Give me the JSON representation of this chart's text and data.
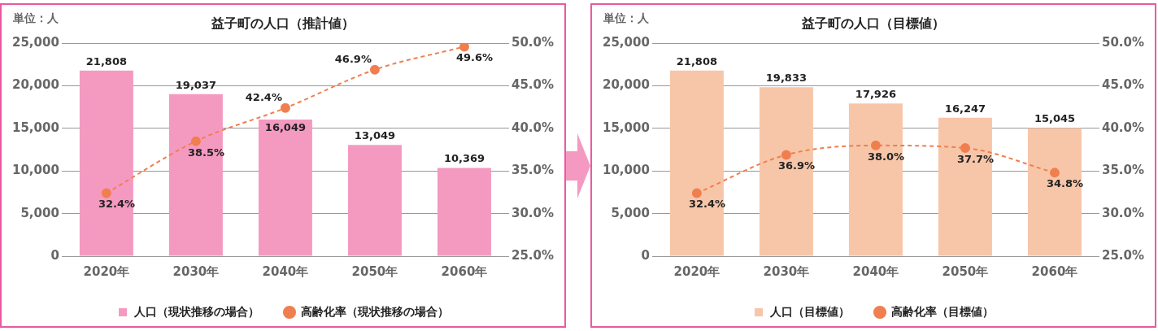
{
  "chart_data": [
    {
      "type": "bar",
      "title": "益子町の人口（推計値）",
      "annotations": [
        "単位：人"
      ],
      "categories": [
        "2020年",
        "2030年",
        "2040年",
        "2050年",
        "2060年"
      ],
      "series": [
        {
          "name": "人口（現状推移の場合）",
          "color": "#f49ac1",
          "values": [
            21808,
            19037,
            16049,
            13049,
            10369
          ],
          "value_labels": [
            "21,808",
            "19,037",
            "16,049",
            "13,049",
            "10,369"
          ]
        },
        {
          "name": "高齢化率（現状推移の場合）",
          "type": "line",
          "axis": "y2",
          "color": "#f07f4f",
          "values": [
            32.4,
            38.5,
            42.4,
            46.9,
            49.6
          ],
          "value_labels": [
            "32.4%",
            "38.5%",
            "42.4%",
            "46.9%",
            "49.6%"
          ]
        }
      ],
      "ylim": [
        0,
        25000
      ],
      "yticks": [
        0,
        {
          "value": 5000,
          "label": "5,000"
        },
        {
          "value": 10000,
          "label": "10,000"
        },
        {
          "value": 15000,
          "label": "15,000"
        },
        {
          "value": 20000,
          "label": "20,000"
        },
        {
          "value": 25000,
          "label": "25,000"
        }
      ],
      "y2lim": [
        25,
        50
      ],
      "y2ticks": [
        {
          "value": 25,
          "label": "25.0%"
        },
        {
          "value": 30,
          "label": "30.0%"
        },
        {
          "value": 35,
          "label": "35.0%"
        },
        {
          "value": 40,
          "label": "40.0%"
        },
        {
          "value": 45,
          "label": "45.0%"
        },
        {
          "value": 50,
          "label": "50.0%"
        }
      ],
      "grid": "y",
      "legend": "bottom",
      "line_style": "dashed",
      "marker": "circle"
    },
    {
      "type": "bar",
      "title": "益子町の人口（目標値）",
      "annotations": [
        "単位：人"
      ],
      "categories": [
        "2020年",
        "2030年",
        "2040年",
        "2050年",
        "2060年"
      ],
      "series": [
        {
          "name": "人口（目標値）",
          "color": "#f7c6a9",
          "values": [
            21808,
            19833,
            17926,
            16247,
            15045
          ],
          "value_labels": [
            "21,808",
            "19,833",
            "17,926",
            "16,247",
            "15,045"
          ]
        },
        {
          "name": "高齢化率（目標値）",
          "type": "line",
          "axis": "y2",
          "color": "#f07f4f",
          "values": [
            32.4,
            36.9,
            38.0,
            37.7,
            34.8
          ],
          "value_labels": [
            "32.4%",
            "36.9%",
            "38.0%",
            "37.7%",
            "34.8%"
          ]
        }
      ],
      "ylim": [
        0,
        25000
      ],
      "yticks": [
        0,
        {
          "value": 5000,
          "label": "5,000"
        },
        {
          "value": 10000,
          "label": "10,000"
        },
        {
          "value": 15000,
          "label": "15,000"
        },
        {
          "value": 20000,
          "label": "20,000"
        },
        {
          "value": 25000,
          "label": "25,000"
        }
      ],
      "y2lim": [
        25,
        50
      ],
      "y2ticks": [
        {
          "value": 25,
          "label": "25.0%"
        },
        {
          "value": 30,
          "label": "30.0%"
        },
        {
          "value": 35,
          "label": "35.0%"
        },
        {
          "value": 40,
          "label": "40.0%"
        },
        {
          "value": 45,
          "label": "45.0%"
        },
        {
          "value": 50,
          "label": "50.0%"
        }
      ],
      "grid": "y",
      "legend": "bottom",
      "line_style": "dashed",
      "marker": "circle"
    }
  ]
}
